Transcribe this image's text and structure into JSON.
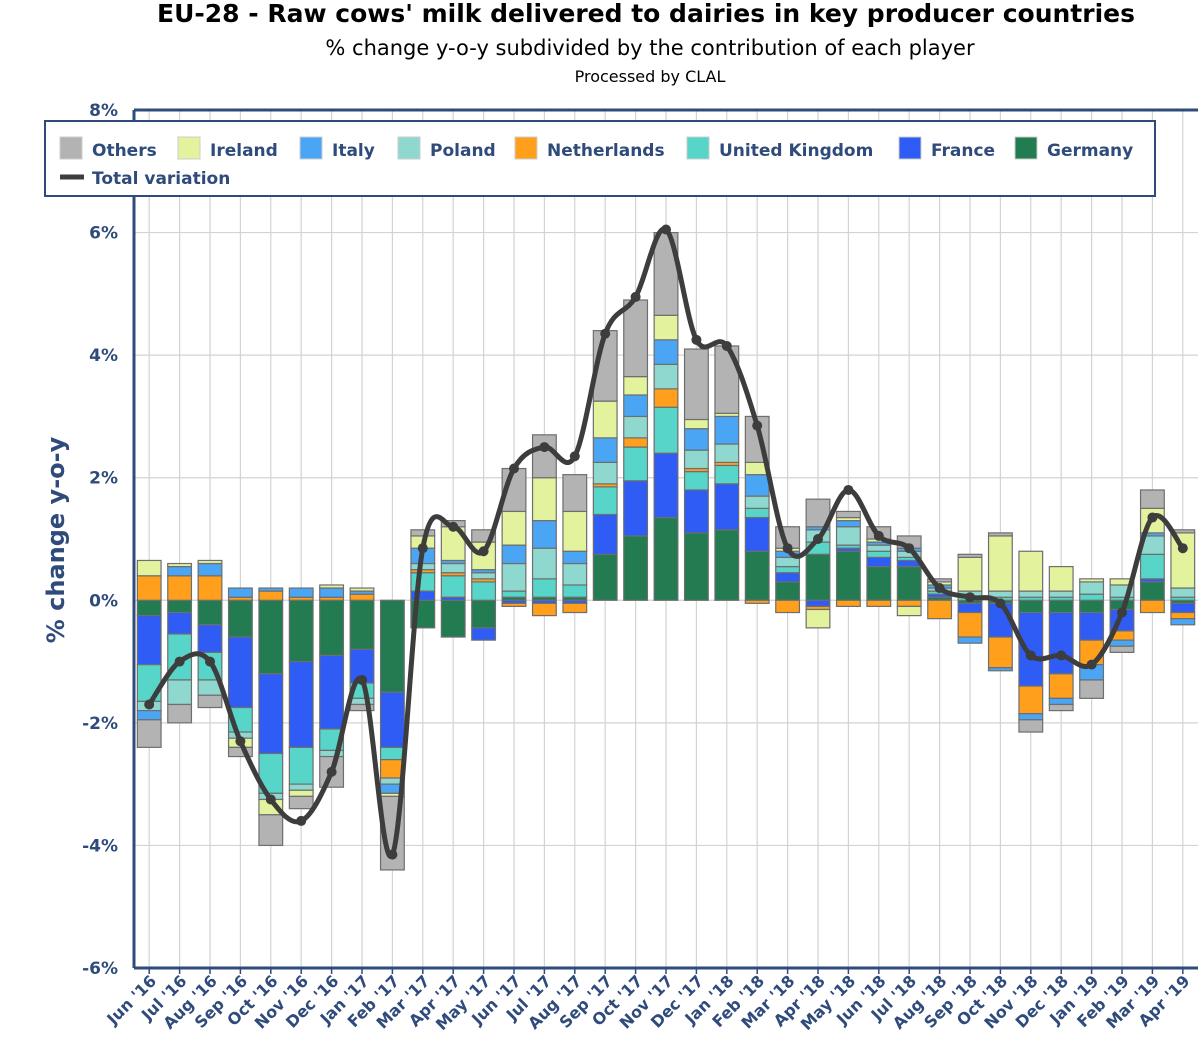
{
  "title": "EU-28 - Raw cows' milk delivered to dairies in key producer countries",
  "subtitle": "% change y-o-y subdivided by the contribution of each player",
  "note": "Processed by CLAL",
  "chart_data": {
    "type": "bar",
    "stacked": true,
    "ylabel": "% change y-o-y",
    "xlabel": "",
    "ylim": [
      -6,
      8
    ],
    "yticks": [
      -6,
      -4,
      -2,
      0,
      2,
      4,
      6,
      8
    ],
    "ytick_labels": [
      "-6%",
      "-4%",
      "-2%",
      "0%",
      "2%",
      "4%",
      "6%",
      "8%"
    ],
    "grid": true,
    "legend_position": "top",
    "categories": [
      "Jun '16",
      "Jul '16",
      "Aug '16",
      "Sep '16",
      "Oct '16",
      "Nov '16",
      "Dec '16",
      "Jan '17",
      "Feb '17",
      "Mar '17",
      "Apr '17",
      "May '17",
      "Jun '17",
      "Jul '17",
      "Aug '17",
      "Sep '17",
      "Oct '17",
      "Nov '17",
      "Dec '17",
      "Jan '18",
      "Feb '18",
      "Mar '18",
      "Apr '18",
      "May '18",
      "Jun '18",
      "Jul '18",
      "Aug '18",
      "Sep '18",
      "Oct '18",
      "Nov '18",
      "Dec '18",
      "Jan '19",
      "Feb '19",
      "Mar '19",
      "Apr '19"
    ],
    "series": [
      {
        "name": "Germany",
        "color": "#237b52",
        "values": [
          -0.25,
          -0.2,
          -0.4,
          -0.6,
          -1.2,
          -1.0,
          -0.9,
          -0.8,
          -1.5,
          -0.45,
          -0.6,
          -0.45,
          0.05,
          0.05,
          0.05,
          0.75,
          1.05,
          1.35,
          1.1,
          1.15,
          0.8,
          0.3,
          0.75,
          0.8,
          0.55,
          0.55,
          0.05,
          -0.05,
          -0.05,
          -0.2,
          -0.2,
          -0.2,
          -0.15,
          0.3,
          -0.05
        ]
      },
      {
        "name": "France",
        "color": "#2e5cf5",
        "values": [
          -0.8,
          -0.35,
          -0.45,
          -1.15,
          -1.3,
          -1.4,
          -1.2,
          -0.55,
          -0.9,
          0.15,
          0.05,
          -0.2,
          -0.05,
          -0.05,
          -0.05,
          0.65,
          0.9,
          1.05,
          0.7,
          0.75,
          0.55,
          0.15,
          -0.1,
          0.05,
          0.15,
          0.1,
          0.05,
          -0.15,
          -0.55,
          -1.2,
          -1.0,
          -0.45,
          -0.35,
          0.05,
          -0.15
        ]
      },
      {
        "name": "United Kingdom",
        "color": "#56d5c8",
        "values": [
          -0.6,
          -0.75,
          -0.45,
          -0.4,
          -0.65,
          -0.6,
          -0.35,
          -0.25,
          -0.2,
          0.3,
          0.35,
          0.3,
          0.1,
          0.3,
          0.2,
          0.45,
          0.55,
          0.75,
          0.3,
          0.3,
          0.15,
          0.1,
          0.2,
          0.05,
          0.1,
          0.05,
          0.05,
          0.05,
          0.05,
          0.05,
          0.05,
          0.1,
          0.05,
          0.4,
          0.05
        ]
      },
      {
        "name": "Netherlands",
        "color": "#ff9f1c",
        "values": [
          0.4,
          0.4,
          0.4,
          0.05,
          0.15,
          0.05,
          0.05,
          0.1,
          -0.3,
          0.05,
          0.05,
          0.05,
          -0.05,
          -0.2,
          -0.15,
          0.05,
          0.15,
          0.3,
          0.05,
          0.05,
          -0.05,
          -0.2,
          -0.05,
          -0.1,
          -0.1,
          -0.1,
          -0.3,
          -0.4,
          -0.5,
          -0.45,
          -0.4,
          -0.4,
          -0.15,
          -0.2,
          -0.1
        ]
      },
      {
        "name": "Poland",
        "color": "#8fd8cf",
        "values": [
          -0.15,
          -0.4,
          -0.25,
          -0.1,
          -0.1,
          -0.1,
          -0.1,
          -0.1,
          -0.1,
          0.1,
          0.15,
          0.1,
          0.45,
          0.5,
          0.35,
          0.35,
          0.35,
          0.4,
          0.3,
          0.3,
          0.2,
          0.15,
          0.2,
          0.3,
          0.1,
          0.1,
          0.05,
          0.1,
          0.1,
          0.1,
          0.1,
          0.2,
          0.2,
          0.3,
          0.15
        ]
      },
      {
        "name": "Italy",
        "color": "#4aa6f5",
        "values": [
          -0.15,
          0.15,
          0.2,
          0.15,
          0.05,
          0.15,
          0.15,
          0.05,
          -0.15,
          0.25,
          0.05,
          0.05,
          0.3,
          0.45,
          0.2,
          0.4,
          0.35,
          0.4,
          0.35,
          0.45,
          0.35,
          0.1,
          0.05,
          0.1,
          0.05,
          0.05,
          0.05,
          -0.1,
          -0.05,
          -0.1,
          -0.1,
          -0.25,
          -0.1,
          0.05,
          -0.1
        ]
      },
      {
        "name": "Ireland",
        "color": "#e2f29d",
        "values": [
          0.25,
          0.05,
          0.05,
          -0.15,
          -0.25,
          -0.1,
          0.05,
          0.05,
          -0.05,
          0.2,
          0.55,
          0.45,
          0.55,
          0.7,
          0.65,
          0.6,
          0.3,
          0.4,
          0.15,
          0.05,
          0.2,
          0.05,
          -0.3,
          0.05,
          0.05,
          -0.15,
          0.05,
          0.55,
          0.9,
          0.65,
          0.4,
          0.05,
          0.1,
          0.4,
          0.9
        ]
      },
      {
        "name": "Others",
        "color": "#b3b3b3",
        "values": [
          -0.45,
          -0.3,
          -0.2,
          -0.15,
          -0.5,
          -0.2,
          -0.5,
          -0.1,
          -1.2,
          0.1,
          0.1,
          0.2,
          0.7,
          0.7,
          0.6,
          1.15,
          1.25,
          1.35,
          1.15,
          1.1,
          0.75,
          0.35,
          0.45,
          0.1,
          0.2,
          0.2,
          0.05,
          0.05,
          0.05,
          -0.2,
          -0.1,
          -0.3,
          -0.1,
          0.3,
          0.05
        ]
      }
    ],
    "line": {
      "name": "Total variation",
      "color": "#3d3d3d",
      "values": [
        -1.7,
        -1.0,
        -1.0,
        -2.3,
        -3.25,
        -3.6,
        -2.8,
        -1.3,
        -4.15,
        0.85,
        1.2,
        0.8,
        2.15,
        2.5,
        2.35,
        4.35,
        4.95,
        6.05,
        4.25,
        4.15,
        2.85,
        0.85,
        1.0,
        1.8,
        1.05,
        0.85,
        0.2,
        0.05,
        -0.05,
        -0.9,
        -0.9,
        -1.05,
        -0.2,
        1.35,
        0.85
      ]
    },
    "legend": [
      "Others",
      "Ireland",
      "Italy",
      "Poland",
      "Netherlands",
      "United Kingdom",
      "France",
      "Germany",
      "Total variation"
    ]
  }
}
